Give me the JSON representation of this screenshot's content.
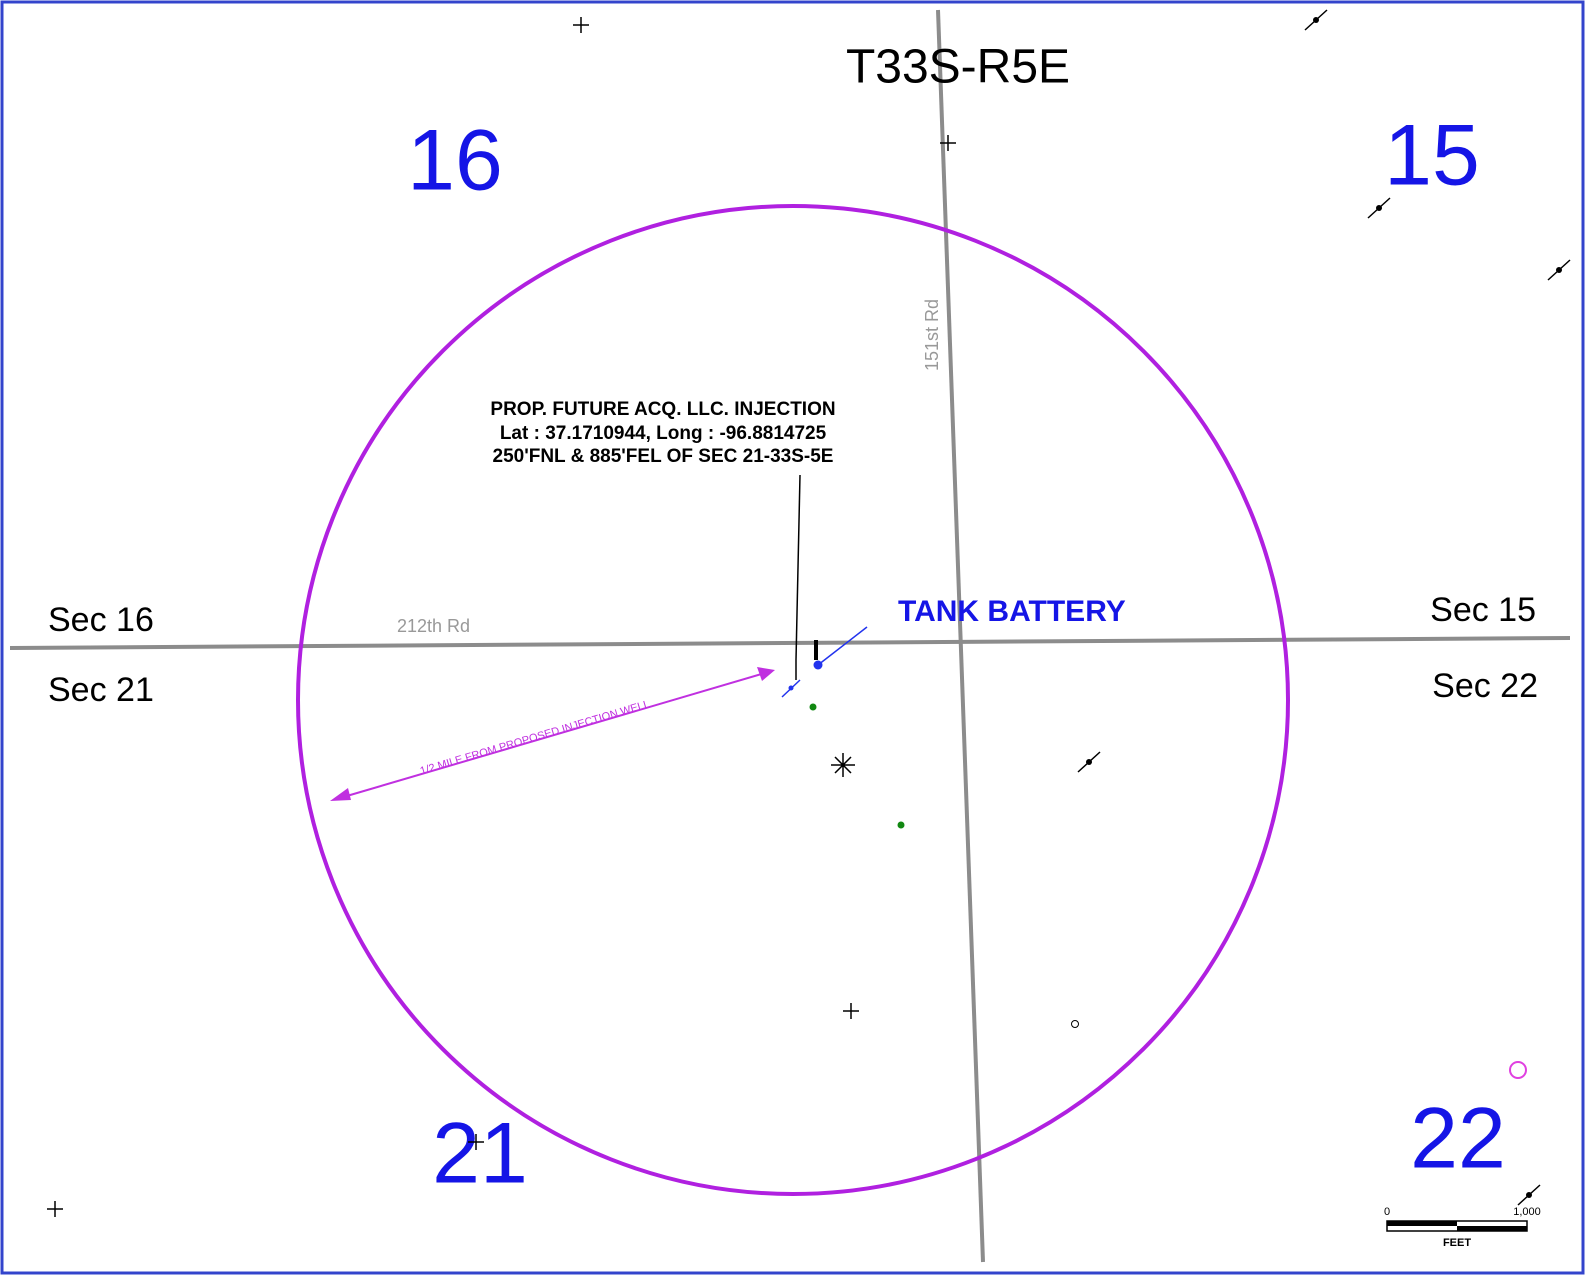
{
  "township": "T33S-R5E",
  "section_numbers": [
    "16",
    "15",
    "21",
    "22"
  ],
  "section_labels": [
    "Sec 16",
    "Sec 21",
    "Sec 15",
    "Sec 22"
  ],
  "roads": [
    "212th Rd",
    "151st Rd"
  ],
  "well_label": [
    "PROP. FUTURE ACQ. LLC. INJECTION",
    "Lat : 37.1710944, Long : -96.8814725",
    "250'FNL & 885'FEL OF SEC 21-33S-5E"
  ],
  "tank_battery": "TANK BATTERY",
  "radius_label": "1/2 MILE FROM PROPOSED INJECTION WELL",
  "scale": {
    "min": "0",
    "max": "1,000",
    "unit": "FEET"
  }
}
